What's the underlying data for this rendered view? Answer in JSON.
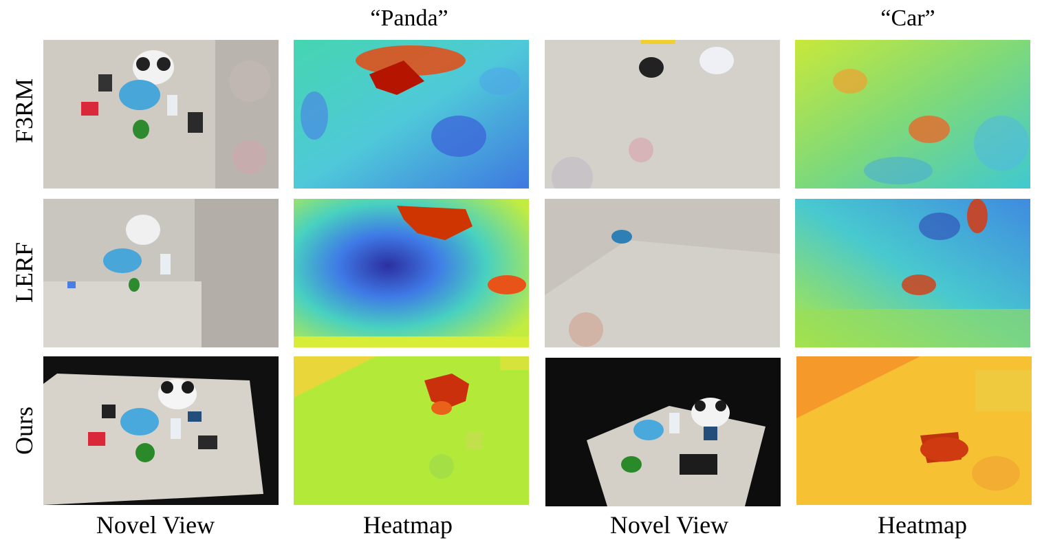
{
  "column_titles": [
    "“Panda”",
    "“Car”"
  ],
  "row_labels": [
    "F3RM",
    "LERF",
    "Ours"
  ],
  "bottom_labels": [
    "Novel View",
    "Heatmap",
    "Novel View",
    "Heatmap"
  ],
  "colors": {
    "heat_cold": "#3a5fd9",
    "heat_mid": "#3fd6b8",
    "heat_warm": "#c8f03a",
    "heat_hot": "#c61a00",
    "floor": "#d9d6cf"
  }
}
